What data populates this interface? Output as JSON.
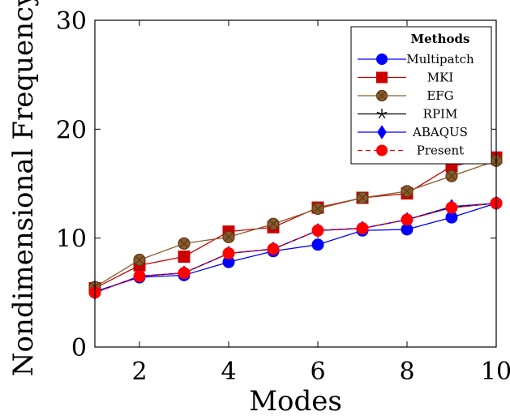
{
  "chart_data": {
    "type": "line",
    "title": "",
    "xlabel": "Modes",
    "ylabel": "Nondimensional Frequency",
    "xlim": [
      1,
      10
    ],
    "ylim": [
      0,
      30
    ],
    "xticks": [
      2,
      4,
      6,
      8,
      10
    ],
    "yticks": [
      0,
      10,
      20,
      30
    ],
    "grid": false,
    "legend": {
      "title": "Methods",
      "placement": "top-right"
    },
    "x": [
      1,
      2,
      3,
      4,
      5,
      6,
      7,
      8,
      9,
      10
    ],
    "series": [
      {
        "name": "Multipatch",
        "color": "#0000ff",
        "marker": "circle",
        "line": "solid",
        "values": [
          5.1,
          6.4,
          6.6,
          7.8,
          8.8,
          9.4,
          10.7,
          10.8,
          11.9,
          13.2
        ]
      },
      {
        "name": "MKI",
        "color": "#cc0000",
        "marker": "square",
        "line": "solid",
        "values": [
          5.4,
          7.5,
          8.3,
          10.6,
          11.0,
          12.8,
          13.7,
          14.1,
          16.6,
          17.4
        ]
      },
      {
        "name": "EFG",
        "color": "#8b5a2b",
        "marker": "circle-x",
        "line": "solid",
        "values": [
          5.5,
          8.0,
          9.5,
          10.1,
          11.3,
          12.7,
          13.7,
          14.3,
          15.7,
          17.1
        ]
      },
      {
        "name": "RPIM",
        "color": "#000000",
        "marker": "star",
        "line": "solid",
        "values": [
          5.0,
          6.5,
          6.8,
          8.6,
          9.0,
          10.7,
          10.9,
          11.7,
          12.8,
          13.2
        ]
      },
      {
        "name": "ABAQUS",
        "color": "#0000ff",
        "marker": "diamond",
        "line": "solid",
        "values": [
          5.0,
          6.5,
          6.8,
          8.6,
          9.0,
          10.7,
          10.9,
          11.7,
          12.9,
          13.2
        ]
      },
      {
        "name": "Present",
        "color": "#ff0000",
        "marker": "circle",
        "line": "dashed",
        "values": [
          5.0,
          6.5,
          6.8,
          8.6,
          9.0,
          10.7,
          10.9,
          11.7,
          12.8,
          13.2
        ]
      }
    ]
  }
}
